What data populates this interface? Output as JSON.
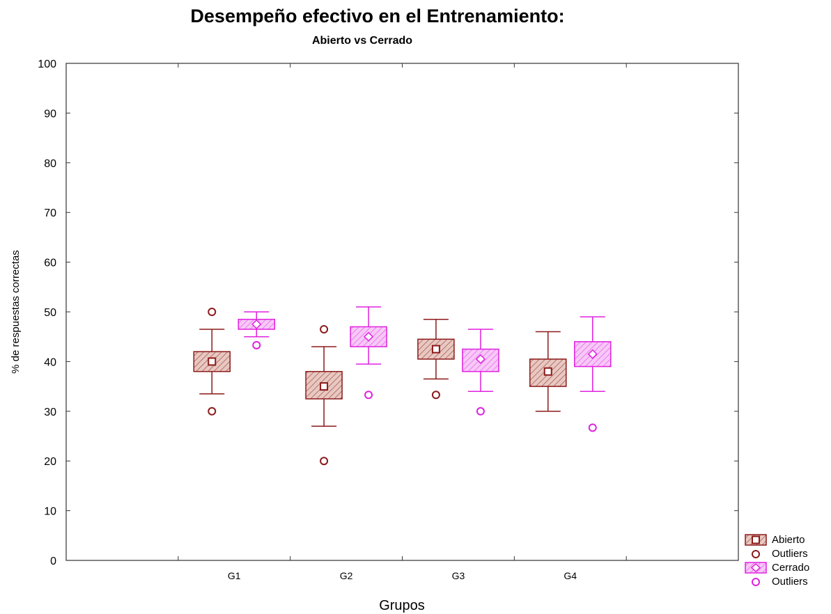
{
  "chart_data": {
    "type": "boxplot",
    "title": "Desempeño efectivo en el Entrenamiento:",
    "subtitle": "Abierto vs Cerrado",
    "xlabel": "Grupos",
    "ylabel": "% de respuestas correctas",
    "ylim": [
      0,
      100
    ],
    "yticks": [
      0,
      10,
      20,
      30,
      40,
      50,
      60,
      70,
      80,
      90,
      100
    ],
    "categories": [
      "G1",
      "G2",
      "G3",
      "G4"
    ],
    "legend_position": "bottom-right",
    "series": [
      {
        "name": "Abierto",
        "color": "#8b1a1a",
        "fill": "#e8c8c0",
        "marker": "square",
        "boxes": [
          {
            "group": "G1",
            "median": 40,
            "q1": 38,
            "q3": 42,
            "whisker_low": 33.5,
            "whisker_high": 46.5,
            "outliers": [
              50,
              30
            ]
          },
          {
            "group": "G2",
            "median": 35,
            "q1": 32.5,
            "q3": 38,
            "whisker_low": 27,
            "whisker_high": 43,
            "outliers": [
              46.5,
              20
            ]
          },
          {
            "group": "G3",
            "median": 42.5,
            "q1": 40.5,
            "q3": 44.5,
            "whisker_low": 36.5,
            "whisker_high": 48.5,
            "outliers": [
              33.3
            ]
          },
          {
            "group": "G4",
            "median": 38,
            "q1": 35,
            "q3": 40.5,
            "whisker_low": 30,
            "whisker_high": 46,
            "outliers": []
          }
        ]
      },
      {
        "name": "Cerrado",
        "color": "#e020e0",
        "fill": "#f8c8f8",
        "marker": "diamond",
        "boxes": [
          {
            "group": "G1",
            "median": 47.5,
            "q1": 46.5,
            "q3": 48.5,
            "whisker_low": 45,
            "whisker_high": 50,
            "outliers": [
              43.3
            ]
          },
          {
            "group": "G2",
            "median": 45,
            "q1": 43,
            "q3": 47,
            "whisker_low": 39.5,
            "whisker_high": 51,
            "outliers": [
              33.3
            ]
          },
          {
            "group": "G3",
            "median": 40.5,
            "q1": 38,
            "q3": 42.5,
            "whisker_low": 34,
            "whisker_high": 46.5,
            "outliers": [
              30
            ]
          },
          {
            "group": "G4",
            "median": 41.5,
            "q1": 39,
            "q3": 44,
            "whisker_low": 34,
            "whisker_high": 49,
            "outliers": [
              26.7
            ]
          }
        ]
      }
    ]
  },
  "legend": {
    "items": [
      {
        "label": "Abierto",
        "kind": "box",
        "color": "#8b1a1a",
        "fill": "#e8c8c0"
      },
      {
        "label": "Outliers",
        "kind": "circle",
        "color": "#8b1a1a"
      },
      {
        "label": "Cerrado",
        "kind": "box",
        "color": "#e020e0",
        "fill": "#f8c8f8"
      },
      {
        "label": "Outliers",
        "kind": "circle",
        "color": "#e020e0"
      }
    ]
  }
}
